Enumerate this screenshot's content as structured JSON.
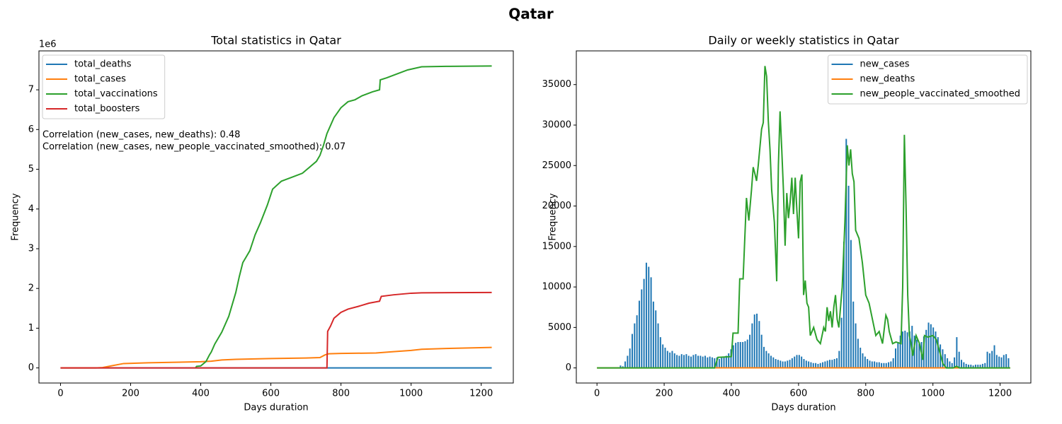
{
  "title": "Qatar",
  "chart_data": [
    {
      "type": "line",
      "title": "Total statistics in Qatar",
      "xlabel": "Days duration",
      "ylabel": "Frequency",
      "xlim": [
        -61.5,
        1291.5
      ],
      "ylim": [
        -380000,
        7980000
      ],
      "xticks": [
        0,
        200,
        400,
        600,
        800,
        1000,
        1200
      ],
      "yticks": [
        {
          "value": 0,
          "label": "0"
        },
        {
          "value": 1000000,
          "label": "1"
        },
        {
          "value": 2000000,
          "label": "2"
        },
        {
          "value": 3000000,
          "label": "3"
        },
        {
          "value": 4000000,
          "label": "4"
        },
        {
          "value": 5000000,
          "label": "5"
        },
        {
          "value": 6000000,
          "label": "6"
        },
        {
          "value": 7000000,
          "label": "7"
        }
      ],
      "y_offset_text": "1e6",
      "legend": "upper left",
      "annotations": [
        "Correlation (new_cases, new_deaths): 0.48",
        "Correlation (new_cases, new_people_vaccinated_smoothed): 0.07"
      ],
      "series": [
        {
          "name": "total_deaths",
          "color": "#1f77b4",
          "x": [
            0,
            100,
            1230
          ],
          "values": [
            0,
            10,
            690
          ]
        },
        {
          "name": "total_cases",
          "color": "#ff7f0e",
          "x": [
            0,
            100,
            120,
            150,
            180,
            250,
            400,
            430,
            460,
            500,
            600,
            700,
            740,
            755,
            765,
            800,
            900,
            950,
            1000,
            1030,
            1100,
            1230
          ],
          "values": [
            0,
            0,
            10000,
            60000,
            110000,
            130000,
            155000,
            170000,
            200000,
            215000,
            235000,
            250000,
            260000,
            330000,
            355000,
            365000,
            375000,
            410000,
            440000,
            470000,
            490000,
            515000
          ]
        },
        {
          "name": "total_vaccinations",
          "color": "#2ca02c",
          "x": [
            385,
            388,
            400,
            415,
            425,
            430,
            440,
            460,
            480,
            500,
            510,
            520,
            530,
            540,
            555,
            570,
            590,
            605,
            630,
            660,
            690,
            710,
            730,
            740,
            750,
            760,
            780,
            800,
            820,
            840,
            860,
            890,
            910,
            912,
            930,
            960,
            990,
            1030,
            1100,
            1230
          ],
          "values": [
            0,
            40000,
            50000,
            160000,
            330000,
            400000,
            600000,
            900000,
            1300000,
            1900000,
            2300000,
            2650000,
            2800000,
            2950000,
            3350000,
            3650000,
            4100000,
            4500000,
            4700000,
            4800000,
            4900000,
            5050000,
            5200000,
            5350000,
            5600000,
            5900000,
            6300000,
            6550000,
            6700000,
            6750000,
            6850000,
            6950000,
            7000000,
            7250000,
            7300000,
            7400000,
            7500000,
            7580000,
            7590000,
            7600000
          ]
        },
        {
          "name": "total_boosters",
          "color": "#d62728",
          "x": [
            0,
            760,
            762,
            770,
            780,
            800,
            820,
            850,
            880,
            910,
            915,
            950,
            1000,
            1030,
            1230
          ],
          "values": [
            0,
            0,
            920000,
            1050000,
            1250000,
            1400000,
            1480000,
            1550000,
            1630000,
            1680000,
            1800000,
            1840000,
            1880000,
            1890000,
            1900000
          ]
        }
      ]
    },
    {
      "type": "line",
      "title": "Daily or weekly statistics in Qatar",
      "xlabel": "Days duration",
      "ylabel": "Frequency",
      "xlim": [
        -61.5,
        1291.5
      ],
      "ylim": [
        -1865,
        39165
      ],
      "xticks": [
        0,
        200,
        400,
        600,
        800,
        1000,
        1200
      ],
      "yticks": [
        0,
        5000,
        10000,
        15000,
        20000,
        25000,
        30000,
        35000
      ],
      "legend": "upper right",
      "series": [
        {
          "name": "new_cases",
          "color": "#1f77b4",
          "type": "bar",
          "x": [
            63,
            70,
            77,
            84,
            91,
            98,
            105,
            112,
            119,
            126,
            133,
            140,
            147,
            154,
            161,
            168,
            175,
            182,
            189,
            196,
            203,
            210,
            217,
            224,
            231,
            238,
            245,
            252,
            259,
            266,
            273,
            280,
            287,
            294,
            301,
            308,
            315,
            322,
            329,
            336,
            343,
            350,
            357,
            364,
            371,
            378,
            385,
            392,
            399,
            406,
            413,
            420,
            427,
            434,
            441,
            448,
            455,
            462,
            469,
            476,
            483,
            490,
            497,
            504,
            511,
            518,
            525,
            532,
            539,
            546,
            553,
            560,
            567,
            574,
            581,
            588,
            595,
            602,
            609,
            616,
            623,
            630,
            637,
            644,
            651,
            658,
            665,
            672,
            679,
            686,
            693,
            700,
            707,
            714,
            721,
            728,
            735,
            742,
            749,
            756,
            763,
            770,
            777,
            784,
            791,
            798,
            805,
            812,
            819,
            826,
            833,
            840,
            847,
            854,
            861,
            868,
            875,
            882,
            889,
            896,
            903,
            910,
            917,
            924,
            931,
            938,
            945,
            952,
            959,
            966,
            973,
            980,
            987,
            994,
            1001,
            1008,
            1015,
            1022,
            1029,
            1036,
            1043,
            1050,
            1057,
            1064,
            1071,
            1078,
            1085,
            1092,
            1099,
            1106,
            1113,
            1120,
            1127,
            1134,
            1141,
            1148,
            1155,
            1162,
            1169,
            1176,
            1183,
            1190,
            1197,
            1204,
            1211,
            1218,
            1225
          ],
          "values": [
            100,
            300,
            200,
            800,
            1500,
            2400,
            4200,
            5500,
            6500,
            8300,
            9700,
            11000,
            13000,
            12500,
            11200,
            8200,
            7100,
            5500,
            3800,
            2900,
            2500,
            2100,
            1900,
            2100,
            1800,
            1600,
            1500,
            1700,
            1600,
            1700,
            1500,
            1400,
            1600,
            1700,
            1500,
            1500,
            1400,
            1500,
            1300,
            1400,
            1300,
            1200,
            1300,
            1100,
            1400,
            1300,
            1500,
            1800,
            2300,
            2800,
            3100,
            3200,
            3200,
            3200,
            3300,
            3500,
            4100,
            5500,
            6600,
            6700,
            5800,
            4100,
            2600,
            2100,
            1800,
            1500,
            1300,
            1100,
            1000,
            900,
            800,
            800,
            900,
            1000,
            1200,
            1400,
            1600,
            1600,
            1400,
            1100,
            900,
            800,
            700,
            600,
            600,
            500,
            600,
            700,
            800,
            900,
            1000,
            1000,
            1100,
            1200,
            2100,
            6200,
            15600,
            28300,
            22500,
            15800,
            8200,
            5500,
            3600,
            2500,
            1800,
            1400,
            1100,
            900,
            800,
            800,
            700,
            700,
            600,
            600,
            600,
            700,
            800,
            1200,
            2400,
            3200,
            4000,
            4500,
            4600,
            4400,
            4500,
            5200,
            4000,
            3500,
            3000,
            3200,
            3900,
            4700,
            5600,
            5400,
            5000,
            4500,
            3800,
            2900,
            2300,
            1700,
            1200,
            800,
            600,
            1300,
            3800,
            2000,
            1000,
            700,
            500,
            400,
            400,
            300,
            400,
            400,
            400,
            500,
            600,
            2000,
            1800,
            2100,
            2800,
            1600,
            1400,
            1300,
            1600,
            1700,
            1200
          ]
        },
        {
          "name": "new_deaths",
          "color": "#ff7f0e",
          "x": [
            0,
            150,
            400,
            750,
            1230
          ],
          "values": [
            0,
            5,
            8,
            10,
            0
          ]
        },
        {
          "name": "new_people_vaccinated_smoothed",
          "color": "#2ca02c",
          "x": [
            0,
            350,
            360,
            400,
            405,
            420,
            425,
            435,
            445,
            452,
            460,
            465,
            470,
            475,
            480,
            490,
            495,
            500,
            505,
            510,
            515,
            520,
            528,
            535,
            540,
            545,
            550,
            555,
            560,
            565,
            570,
            575,
            580,
            585,
            590,
            595,
            600,
            605,
            610,
            615,
            620,
            625,
            630,
            635,
            645,
            655,
            665,
            675,
            680,
            685,
            690,
            695,
            700,
            705,
            710,
            715,
            720,
            730,
            738,
            745,
            750,
            755,
            760,
            765,
            770,
            780,
            790,
            800,
            810,
            820,
            830,
            840,
            850,
            860,
            865,
            870,
            880,
            890,
            905,
            910,
            915,
            920,
            925,
            930,
            935,
            940,
            950,
            960,
            970,
            975,
            985,
            1000,
            1010,
            1020,
            1030,
            1040,
            1060,
            1070,
            1080,
            1230
          ],
          "values": [
            0,
            0,
            1300,
            1400,
            4300,
            4300,
            11000,
            11000,
            21000,
            18200,
            22000,
            24800,
            24000,
            23100,
            25000,
            29500,
            30300,
            37300,
            36000,
            30500,
            27000,
            22000,
            18000,
            10700,
            25000,
            31700,
            27000,
            22000,
            15100,
            21600,
            18500,
            20500,
            23500,
            19000,
            23500,
            19500,
            16000,
            23000,
            23900,
            9000,
            10800,
            8000,
            7500,
            4000,
            5000,
            3500,
            3000,
            5000,
            4500,
            7500,
            5800,
            7000,
            5000,
            7500,
            9000,
            6000,
            5000,
            10000,
            18000,
            27500,
            25000,
            27000,
            24000,
            23000,
            17000,
            16000,
            13000,
            9000,
            8000,
            6000,
            4000,
            4500,
            3000,
            6500,
            6000,
            4500,
            3000,
            3200,
            3000,
            10000,
            28800,
            20000,
            9000,
            4000,
            3000,
            1500,
            4000,
            3000,
            1000,
            4000,
            3800,
            4000,
            3500,
            2000,
            500,
            0,
            0,
            200,
            0,
            0
          ]
        }
      ]
    }
  ]
}
